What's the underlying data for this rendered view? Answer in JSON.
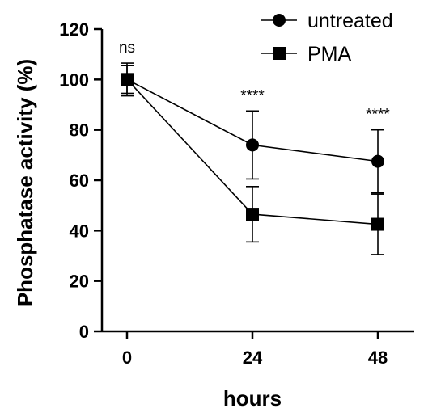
{
  "chart_data": {
    "type": "line",
    "xlabel": "hours",
    "ylabel": "Phosphatase activity (%)",
    "x": [
      0,
      24,
      48
    ],
    "x_tick_labels": [
      "0",
      "24",
      "48"
    ],
    "ylim": [
      0,
      120
    ],
    "y_ticks": [
      0,
      20,
      40,
      60,
      80,
      100,
      120
    ],
    "series": [
      {
        "name": "untreated",
        "marker": "circle",
        "values": [
          100,
          74,
          67.5
        ],
        "errors": [
          6.5,
          13.5,
          12.5
        ]
      },
      {
        "name": "PMA",
        "marker": "square",
        "values": [
          100,
          46.5,
          42.5
        ],
        "errors": [
          5.5,
          11,
          12
        ]
      }
    ],
    "annotations": [
      "ns",
      "****",
      "****"
    ],
    "legend_position": "top-right",
    "grid": false
  }
}
